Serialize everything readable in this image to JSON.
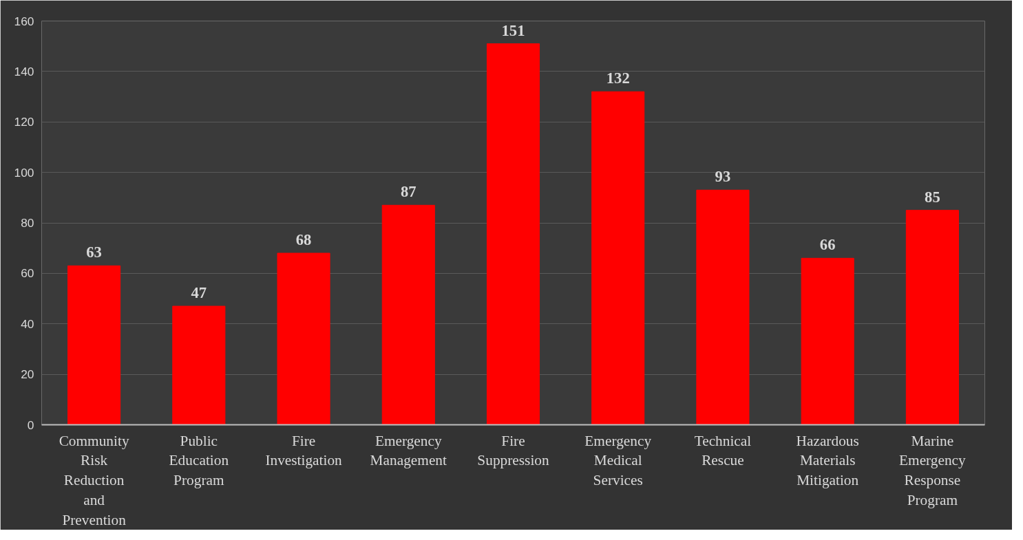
{
  "chart_data": {
    "type": "bar",
    "categories": [
      "Community Risk Reduction and Prevention",
      "Public Education Program",
      "Fire Investigation",
      "Emergency Management",
      "Fire Suppression",
      "Emergency Medical Services",
      "Technical Rescue",
      "Hazardous Materials Mitigation",
      "Marine Emergency Response Program"
    ],
    "values": [
      63,
      47,
      68,
      87,
      151,
      132,
      93,
      66,
      85
    ],
    "color": "#ff0000",
    "ylim": [
      0,
      160
    ],
    "yticks": [
      0,
      20,
      40,
      60,
      80,
      100,
      120,
      140,
      160
    ],
    "grid": "y",
    "data_labels": true
  }
}
